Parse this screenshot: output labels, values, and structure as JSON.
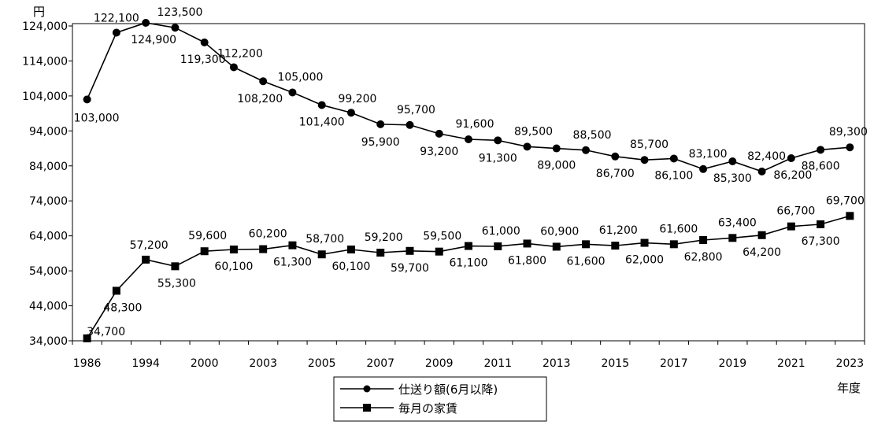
{
  "chart_data": {
    "type": "line",
    "y_unit": "円",
    "x_unit": "年度",
    "ylim": [
      34000,
      124000
    ],
    "yticks": [
      "34,000",
      "44,000",
      "54,000",
      "64,000",
      "74,000",
      "84,000",
      "94,000",
      "104,000",
      "114,000",
      "124,000"
    ],
    "xtick_labels": [
      "1986",
      "1994",
      "2000",
      "2003",
      "2005",
      "2007",
      "2009",
      "2011",
      "2013",
      "2015",
      "2017",
      "2019",
      "2021",
      "2023"
    ],
    "x": [
      "1986",
      "1990",
      "1994",
      "1997",
      "2000",
      "2002",
      "2003",
      "2004",
      "2005",
      "2006",
      "2007",
      "2008",
      "2009",
      "2010",
      "2011",
      "2012",
      "2013",
      "2014",
      "2015",
      "2016",
      "2017",
      "2018",
      "2019",
      "2020",
      "2021",
      "2022",
      "2023"
    ],
    "grid": false,
    "legend_position": "bottom-center",
    "series": [
      {
        "name": "仕送り額(6月以降)",
        "marker": "circle",
        "values": [
          103000,
          122100,
          124900,
          123500,
          119300,
          112200,
          108200,
          105000,
          101400,
          99200,
          95900,
          95700,
          93200,
          91600,
          91300,
          89500,
          89000,
          88500,
          86700,
          85700,
          86100,
          83100,
          85300,
          82400,
          86200,
          88600,
          89300
        ],
        "labels": [
          "103,000",
          "122,100",
          "124,900",
          "123,500",
          "119,300",
          "112,200",
          "108,200",
          "105,000",
          "101,400",
          "99,200",
          "95,900",
          "95,700",
          "93,200",
          "91,600",
          "91,300",
          "89,500",
          "89,000",
          "88,500",
          "86,700",
          "85,700",
          "86,100",
          "83,100",
          "85,300",
          "82,400",
          "86,200",
          "88,600",
          "89,300"
        ]
      },
      {
        "name": "毎月の家賃",
        "marker": "square",
        "values": [
          34700,
          48300,
          57200,
          55300,
          59600,
          60100,
          60200,
          61300,
          58700,
          60100,
          59200,
          59700,
          59500,
          61100,
          61000,
          61800,
          60900,
          61600,
          61200,
          62000,
          61600,
          62800,
          63400,
          64200,
          66700,
          67300,
          69700
        ],
        "labels": [
          "34,700",
          "48,300",
          "57,200",
          "55,300",
          "59,600",
          "60,100",
          "60,200",
          "61,300",
          "58,700",
          "60,100",
          "59,200",
          "59,700",
          "59,500",
          "61,100",
          "61,000",
          "61,800",
          "60,900",
          "61,600",
          "61,200",
          "62,000",
          "61,600",
          "62,800",
          "63,400",
          "64,200",
          "66,700",
          "67,300",
          "69,700"
        ]
      }
    ]
  }
}
